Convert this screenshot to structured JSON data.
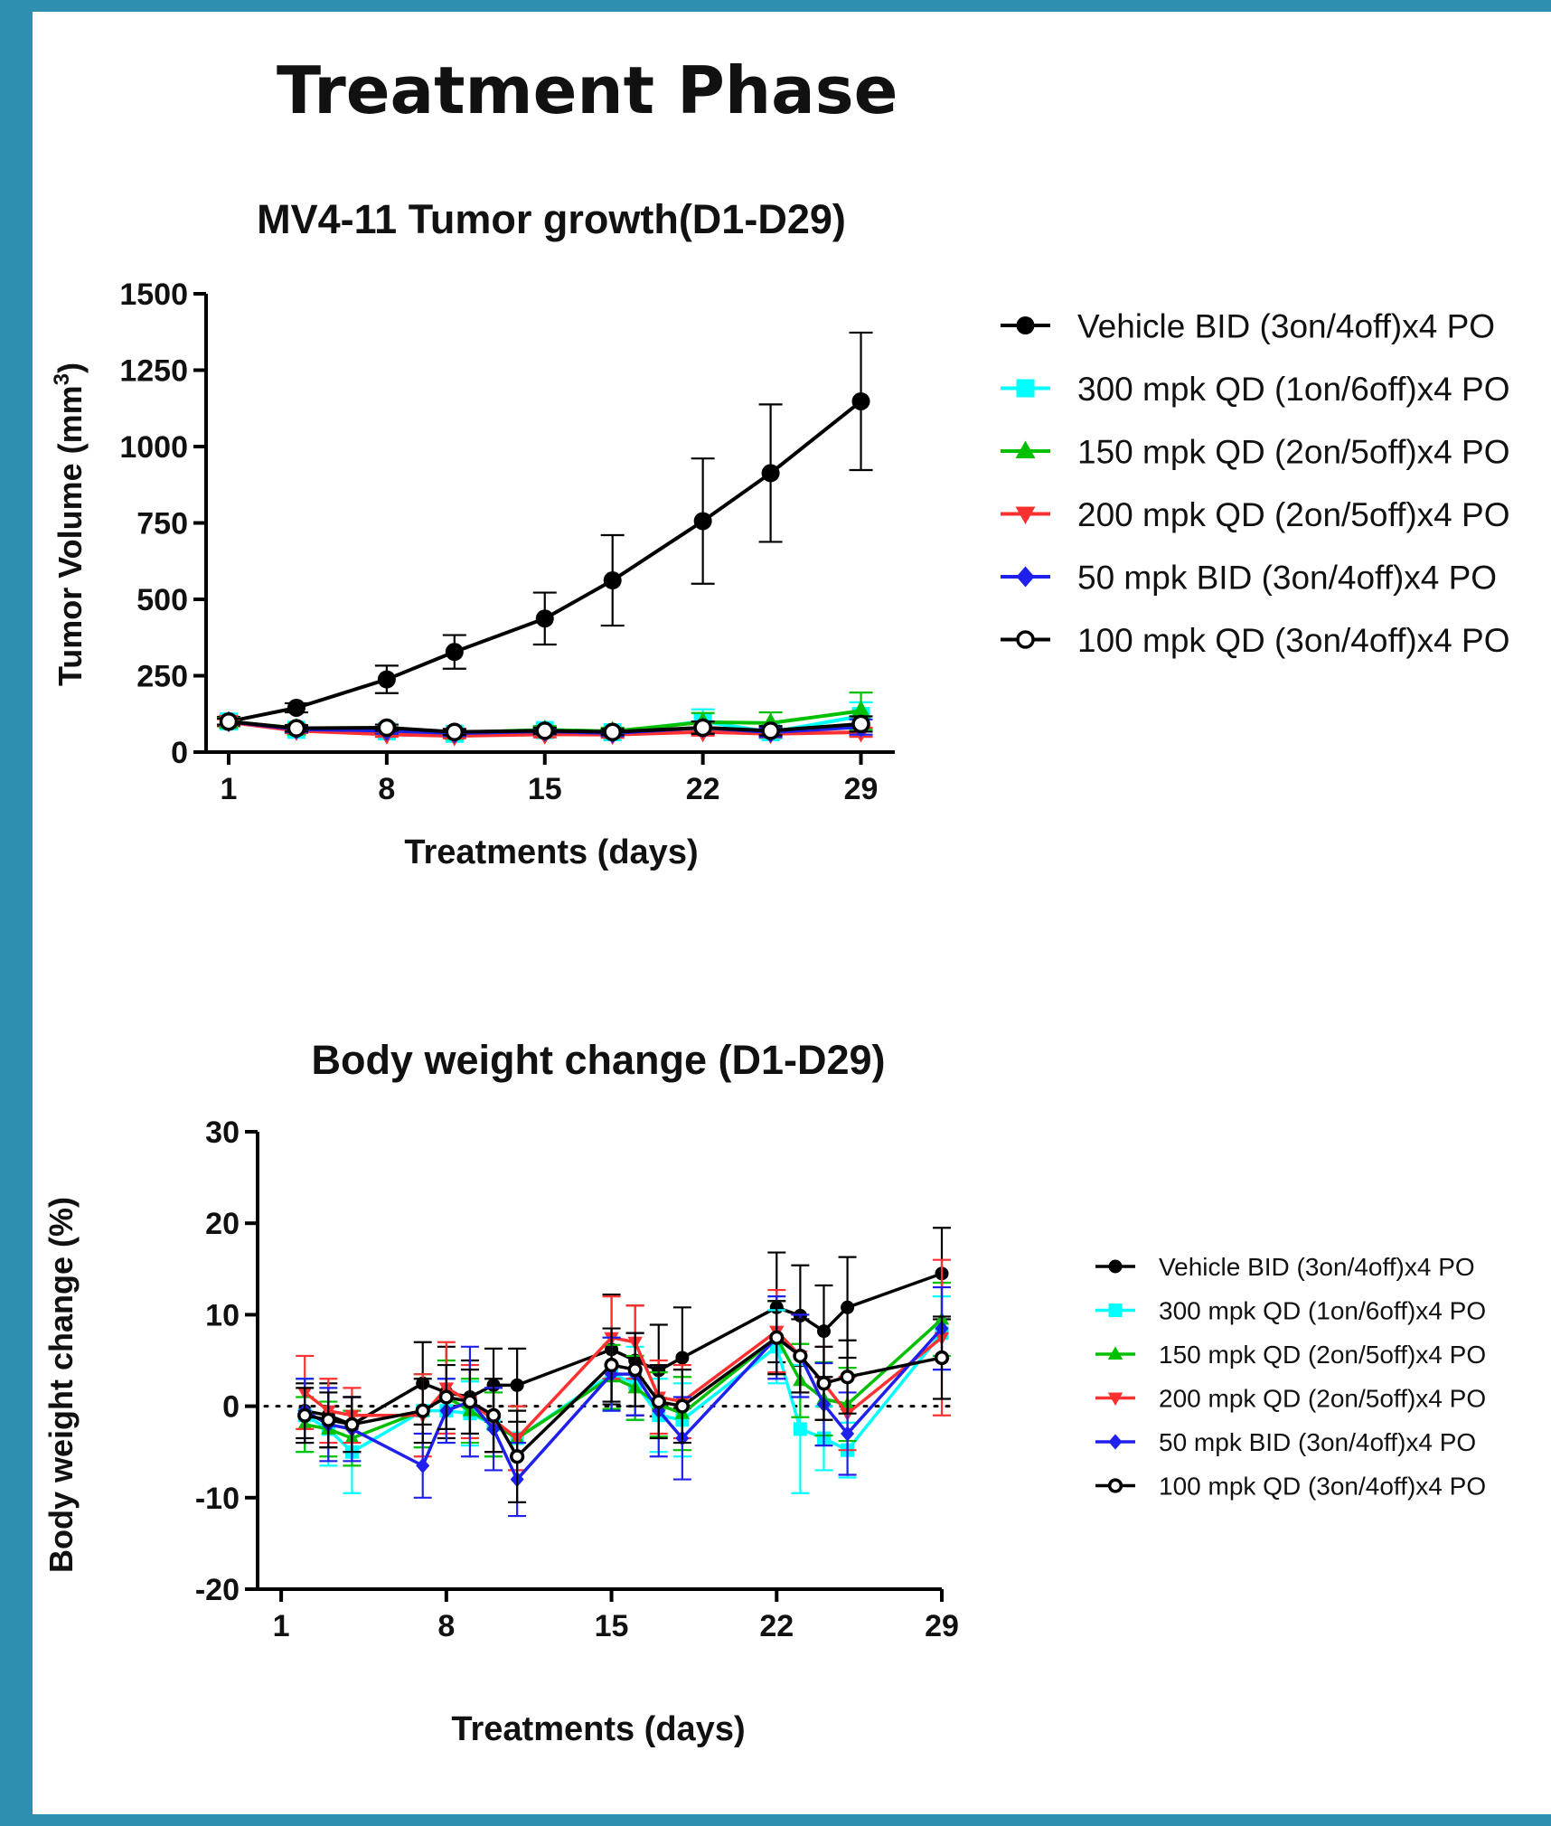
{
  "page": {
    "title": "Treatment Phase"
  },
  "chart_data": [
    {
      "type": "line",
      "title": "MV4-11 Tumor growth(D1-D29)",
      "xlabel": "Treatments (days)",
      "ylabel": "Tumor Volume (mm",
      "ylabel_sup": "3",
      "ylabel_close": ")",
      "xlim": [
        0,
        30.5
      ],
      "ylim": [
        0,
        1500
      ],
      "xticks": [
        1,
        8,
        15,
        22,
        29
      ],
      "yticks": [
        0,
        250,
        500,
        750,
        1000,
        1250,
        1500
      ],
      "legend_position": "right",
      "series": [
        {
          "name": "Vehicle  BID (3on/4off)x4 PO",
          "color": "#000000",
          "marker": "circle",
          "x": [
            1,
            4,
            8,
            11,
            15,
            18,
            22,
            25,
            29
          ],
          "y": [
            100,
            145,
            238,
            328,
            437,
            562,
            756,
            913,
            1148
          ],
          "err": [
            15,
            15,
            45,
            55,
            85,
            148,
            205,
            225,
            225
          ]
        },
        {
          "name": "300 mpk QD (1on/6off)x4 PO",
          "color": "#00ffff",
          "marker": "square",
          "x": [
            1,
            4,
            8,
            11,
            15,
            18,
            22,
            25,
            29
          ],
          "y": [
            100,
            73,
            68,
            60,
            72,
            65,
            100,
            65,
            118
          ],
          "err": [
            12,
            10,
            10,
            10,
            12,
            12,
            40,
            20,
            45
          ]
        },
        {
          "name": "150 mpk QD (2on/5off)x4 PO",
          "color": "#00c000",
          "marker": "triangle-up",
          "x": [
            1,
            4,
            8,
            11,
            15,
            18,
            22,
            25,
            29
          ],
          "y": [
            100,
            78,
            72,
            64,
            73,
            68,
            98,
            95,
            135
          ],
          "err": [
            12,
            10,
            10,
            10,
            12,
            12,
            30,
            35,
            60
          ]
        },
        {
          "name": "200 mpk QD (2on/5off)x4 PO",
          "color": "#ff3030",
          "marker": "triangle-down",
          "x": [
            1,
            4,
            8,
            11,
            15,
            18,
            22,
            25,
            29
          ],
          "y": [
            98,
            70,
            58,
            53,
            58,
            57,
            66,
            60,
            65
          ],
          "err": [
            10,
            8,
            8,
            8,
            10,
            10,
            12,
            12,
            15
          ]
        },
        {
          "name": "50 mpk BID (3on/4off)x4 PO",
          "color": "#2020ee",
          "marker": "diamond",
          "x": [
            1,
            4,
            8,
            11,
            15,
            18,
            22,
            25,
            29
          ],
          "y": [
            100,
            75,
            70,
            62,
            68,
            62,
            80,
            65,
            82
          ],
          "err": [
            10,
            10,
            10,
            10,
            10,
            10,
            20,
            15,
            25
          ]
        },
        {
          "name": "100 mpk QD (3on/4off)x4 PO",
          "color": "#000000",
          "marker": "open-circle",
          "x": [
            1,
            4,
            8,
            11,
            15,
            18,
            22,
            25,
            29
          ],
          "y": [
            100,
            78,
            80,
            66,
            70,
            66,
            80,
            70,
            92
          ],
          "err": [
            10,
            10,
            10,
            10,
            10,
            10,
            20,
            15,
            25
          ]
        }
      ]
    },
    {
      "type": "line",
      "title": "Body weight change (D1-D29)",
      "xlabel": "Treatments (days)",
      "ylabel": "Body weight change (%)",
      "xlim": [
        0,
        29
      ],
      "ylim": [
        -20,
        30
      ],
      "xticks": [
        1,
        8,
        15,
        22,
        29
      ],
      "yticks": [
        -20,
        -10,
        0,
        10,
        20,
        30
      ],
      "reference_line_y": 0,
      "legend_position": "right",
      "series": [
        {
          "name": "Vehicle BID (3on/4off)x4 PO",
          "color": "#000000",
          "marker": "circle",
          "x": [
            2,
            3,
            4,
            7,
            8,
            9,
            10,
            11,
            15,
            16,
            17,
            18,
            22,
            23,
            24,
            25,
            29
          ],
          "y": [
            -0.5,
            -1.0,
            -2.0,
            2.5,
            1.5,
            1.0,
            2.3,
            2.3,
            6.2,
            5.0,
            3.9,
            5.3,
            10.8,
            9.9,
            8.2,
            10.8,
            14.5
          ],
          "err": [
            3.0,
            3.5,
            3.0,
            4.5,
            5.0,
            4.0,
            4.0,
            4.0,
            6.0,
            6.0,
            5.0,
            5.5,
            6.0,
            5.5,
            5.0,
            5.5,
            5.0
          ]
        },
        {
          "name": "300 mpk QD (1on/6off)x4 PO",
          "color": "#00ffff",
          "marker": "square",
          "x": [
            2,
            3,
            4,
            7,
            8,
            9,
            10,
            11,
            15,
            16,
            17,
            18,
            22,
            23,
            24,
            25,
            29
          ],
          "y": [
            -1.0,
            -2.5,
            -5.0,
            -0.5,
            -0.5,
            -0.8,
            -2.0,
            -3.5,
            3.5,
            2.5,
            -1.0,
            -1.5,
            6.5,
            -2.5,
            -3.5,
            -4.8,
            8.0
          ],
          "err": [
            4.0,
            4.0,
            4.5,
            4.0,
            3.5,
            3.5,
            3.5,
            3.5,
            4.0,
            4.0,
            4.0,
            4.0,
            4.0,
            7.0,
            3.5,
            3.0,
            4.0
          ]
        },
        {
          "name": "150 mpk QD (2on/5off)x4 PO",
          "color": "#00c000",
          "marker": "triangle-up",
          "x": [
            2,
            3,
            4,
            7,
            8,
            9,
            10,
            11,
            15,
            16,
            17,
            18,
            22,
            23,
            24,
            25,
            29
          ],
          "y": [
            -2.0,
            -2.5,
            -3.5,
            -0.5,
            1.0,
            -0.5,
            -2.0,
            -3.5,
            3.2,
            2.0,
            0.2,
            -0.8,
            7.5,
            2.8,
            0.8,
            0.2,
            9.5
          ],
          "err": [
            3.0,
            3.0,
            3.0,
            4.0,
            4.0,
            3.5,
            3.5,
            3.5,
            3.5,
            3.5,
            3.5,
            4.0,
            4.0,
            4.0,
            4.0,
            4.0,
            4.0
          ]
        },
        {
          "name": "200 mpk QD (2on/5off)x4 PO",
          "color": "#ff3030",
          "marker": "triangle-down",
          "x": [
            2,
            3,
            4,
            7,
            8,
            9,
            10,
            11,
            15,
            16,
            17,
            18,
            22,
            23,
            24,
            25,
            29
          ],
          "y": [
            1.5,
            -0.5,
            -1.0,
            -1.0,
            2.0,
            0.5,
            -1.5,
            -3.5,
            7.5,
            7.0,
            1.0,
            0.5,
            8.2,
            5.5,
            2.5,
            -0.8,
            7.5
          ],
          "err": [
            4.0,
            3.5,
            3.0,
            4.5,
            5.0,
            4.0,
            3.5,
            3.5,
            4.5,
            4.0,
            4.0,
            4.0,
            4.5,
            4.0,
            4.0,
            4.0,
            8.5
          ]
        },
        {
          "name": "50 mpk BID (3on/4off)x4 PO",
          "color": "#2020ee",
          "marker": "diamond",
          "x": [
            2,
            3,
            4,
            7,
            8,
            9,
            10,
            11,
            15,
            16,
            17,
            18,
            22,
            23,
            24,
            25,
            29
          ],
          "y": [
            -0.5,
            -2.0,
            -2.5,
            -6.5,
            -0.5,
            0.5,
            -2.5,
            -8.0,
            3.5,
            3.5,
            -0.5,
            -3.5,
            7.5,
            5.5,
            0.2,
            -3.0,
            8.5
          ],
          "err": [
            3.5,
            4.0,
            3.5,
            3.5,
            3.5,
            6.0,
            4.5,
            4.0,
            4.0,
            4.5,
            5.0,
            4.5,
            4.5,
            4.5,
            4.5,
            4.5,
            4.5
          ]
        },
        {
          "name": "100 mpk QD (3on/4off)x4 PO",
          "color": "#000000",
          "marker": "open-circle",
          "x": [
            2,
            3,
            4,
            7,
            8,
            9,
            10,
            11,
            15,
            16,
            17,
            18,
            22,
            23,
            24,
            25,
            29
          ],
          "y": [
            -1.0,
            -1.5,
            -2.0,
            -0.5,
            1.0,
            0.5,
            -1.0,
            -5.5,
            4.5,
            4.0,
            0.5,
            0.0,
            7.5,
            5.5,
            2.5,
            3.2,
            5.3
          ],
          "err": [
            3.0,
            3.0,
            3.0,
            3.5,
            3.5,
            3.5,
            4.0,
            5.0,
            4.0,
            4.0,
            4.0,
            4.0,
            4.0,
            4.0,
            4.0,
            4.0,
            4.5
          ]
        }
      ]
    }
  ]
}
